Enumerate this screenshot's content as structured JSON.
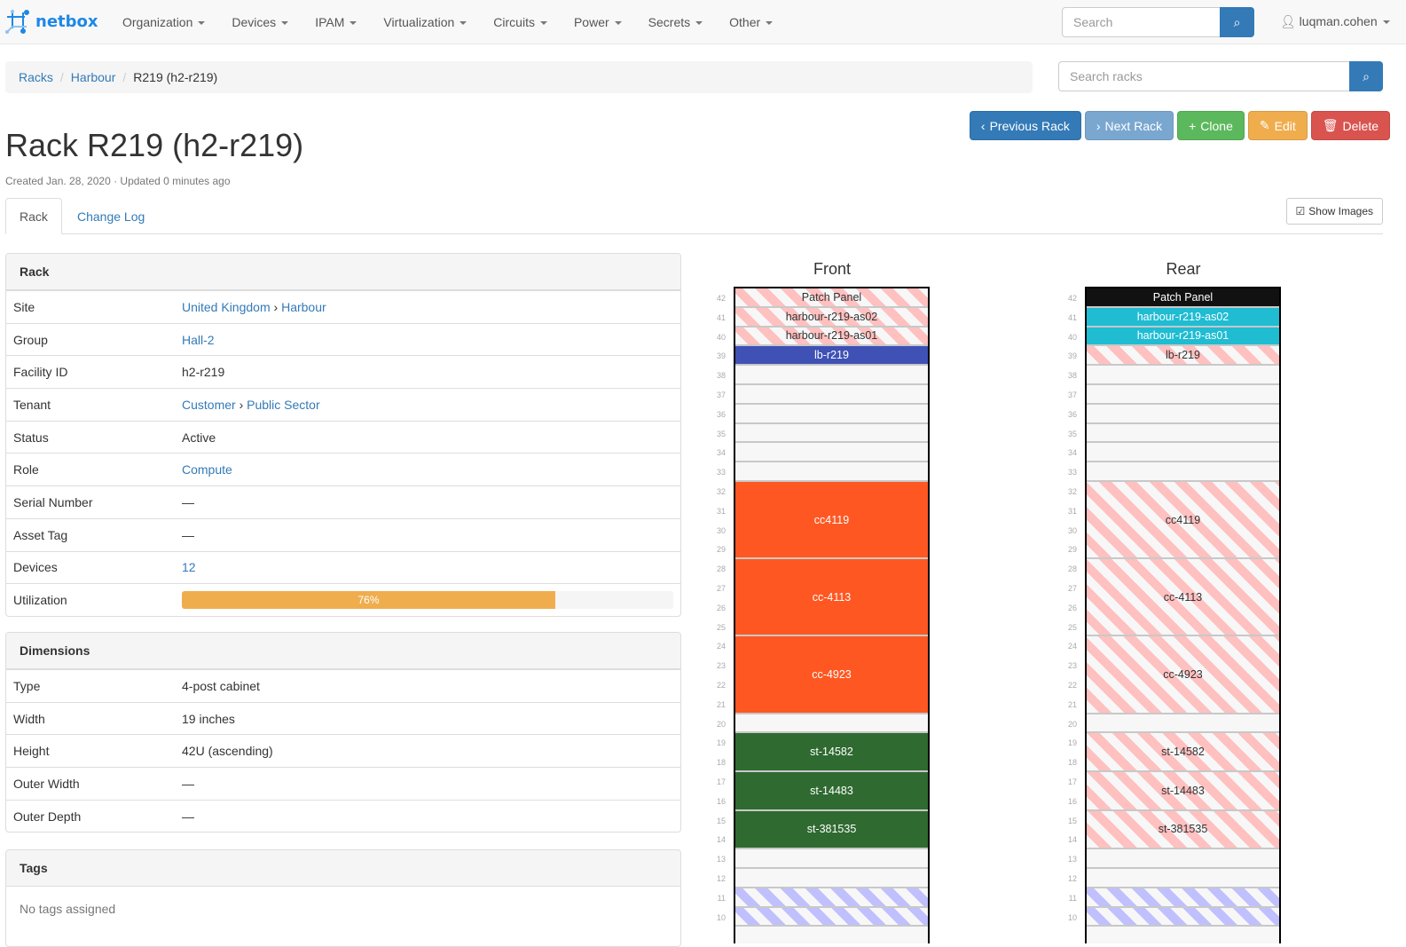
{
  "nav": {
    "brand": "netbox",
    "menu": [
      "Organization",
      "Devices",
      "IPAM",
      "Virtualization",
      "Circuits",
      "Power",
      "Secrets",
      "Other"
    ],
    "search_placeholder": "Search",
    "user": "luqman.cohen"
  },
  "breadcrumb": [
    "Racks",
    "Harbour",
    "R219 (h2-r219)"
  ],
  "rack_search_placeholder": "Search racks",
  "title": "Rack R219 (h2-r219)",
  "meta": "Created Jan. 28, 2020 · Updated 0 minutes ago",
  "buttons": {
    "prev": "Previous Rack",
    "next": "Next Rack",
    "clone": "Clone",
    "edit": "Edit",
    "delete": "Delete"
  },
  "tabs": [
    "Rack",
    "Change Log"
  ],
  "show_images": "Show Images",
  "rack_panel": {
    "title": "Rack",
    "site": [
      "United Kingdom",
      "Harbour"
    ],
    "group": "Hall-2",
    "facility_id": "h2-r219",
    "tenant": [
      "Customer",
      "Public Sector"
    ],
    "status": "Active",
    "role": "Compute",
    "serial": "—",
    "asset_tag": "—",
    "devices": "12",
    "utilization": 76,
    "utilization_label": "76%",
    "labels": {
      "site": "Site",
      "group": "Group",
      "facility": "Facility ID",
      "tenant": "Tenant",
      "status": "Status",
      "role": "Role",
      "serial": "Serial Number",
      "asset": "Asset Tag",
      "devices": "Devices",
      "util": "Utilization"
    }
  },
  "dimensions": {
    "title": "Dimensions",
    "rows": [
      [
        "Type",
        "4-post cabinet"
      ],
      [
        "Width",
        "19 inches"
      ],
      [
        "Height",
        "42U (ascending)"
      ],
      [
        "Outer Width",
        "—"
      ],
      [
        "Outer Depth",
        "—"
      ]
    ]
  },
  "tags": {
    "title": "Tags",
    "empty": "No tags assigned"
  },
  "elevation": {
    "front_title": "Front",
    "rear_title": "Rear",
    "units": [
      42,
      41,
      40,
      39,
      38,
      37,
      36,
      35,
      34,
      33,
      32,
      31,
      30,
      29,
      28,
      27,
      26,
      25,
      24,
      23,
      22,
      21,
      20,
      19,
      18,
      17,
      16,
      15,
      14,
      13,
      12,
      11,
      10
    ],
    "front": [
      {
        "name": "Patch Panel",
        "unit": 42,
        "height": 1,
        "style": "stripe-red"
      },
      {
        "name": "harbour-r219-as02",
        "unit": 41,
        "height": 1,
        "style": "stripe-red"
      },
      {
        "name": "harbour-r219-as01",
        "unit": 40,
        "height": 1,
        "style": "stripe-red"
      },
      {
        "name": "lb-r219",
        "unit": 39,
        "height": 1,
        "color": "#3f51b5"
      },
      {
        "name": "cc4119",
        "unit": 29,
        "height": 4,
        "color": "#ff5722"
      },
      {
        "name": "cc-4113",
        "unit": 25,
        "height": 4,
        "color": "#ff5722"
      },
      {
        "name": "cc-4923",
        "unit": 21,
        "height": 4,
        "color": "#ff5722"
      },
      {
        "name": "st-14582",
        "unit": 18,
        "height": 2,
        "color": "#2f6a31"
      },
      {
        "name": "st-14483",
        "unit": 16,
        "height": 2,
        "color": "#2f6a31"
      },
      {
        "name": "st-381535",
        "unit": 14,
        "height": 2,
        "color": "#2f6a31"
      },
      {
        "name": "",
        "unit": 11,
        "height": 1,
        "style": "stripe-blue"
      },
      {
        "name": "",
        "unit": 10,
        "height": 1,
        "style": "stripe-blue"
      }
    ],
    "rear": [
      {
        "name": "Patch Panel",
        "unit": 42,
        "height": 1,
        "color": "#111111"
      },
      {
        "name": "harbour-r219-as02",
        "unit": 41,
        "height": 1,
        "color": "#1fbcd2"
      },
      {
        "name": "harbour-r219-as01",
        "unit": 40,
        "height": 1,
        "color": "#1fbcd2"
      },
      {
        "name": "lb-r219",
        "unit": 39,
        "height": 1,
        "style": "stripe-red"
      },
      {
        "name": "cc4119",
        "unit": 29,
        "height": 4,
        "style": "stripe-red"
      },
      {
        "name": "cc-4113",
        "unit": 25,
        "height": 4,
        "style": "stripe-red"
      },
      {
        "name": "cc-4923",
        "unit": 21,
        "height": 4,
        "style": "stripe-red"
      },
      {
        "name": "st-14582",
        "unit": 18,
        "height": 2,
        "style": "stripe-red"
      },
      {
        "name": "st-14483",
        "unit": 16,
        "height": 2,
        "style": "stripe-red"
      },
      {
        "name": "st-381535",
        "unit": 14,
        "height": 2,
        "style": "stripe-red"
      },
      {
        "name": "",
        "unit": 11,
        "height": 1,
        "style": "stripe-blue"
      },
      {
        "name": "",
        "unit": 10,
        "height": 1,
        "style": "stripe-blue"
      }
    ]
  }
}
